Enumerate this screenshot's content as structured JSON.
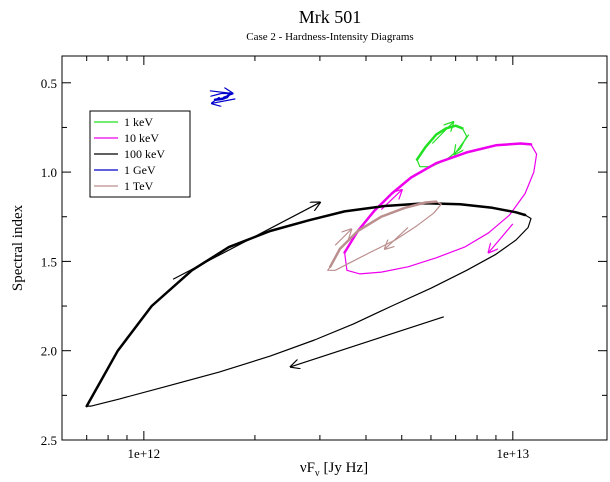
{
  "chart_data": {
    "type": "line",
    "title": "Mrk 501",
    "subtitle": "Case 2 - Hardness-Intensity Diagrams",
    "xlabel": "νF",
    "xlabel_sub": "ν",
    "xlabel_unit": "[Jy Hz]",
    "ylabel": "Spectral index",
    "xscale": "log",
    "xlim": [
      600000000000.0,
      18000000000000.0
    ],
    "ylim": [
      2.5,
      0.35
    ],
    "grid": false,
    "x_ticks": [
      {
        "value": 1000000000000.0,
        "label": "1e+12"
      },
      {
        "value": 10000000000000.0,
        "label": "1e+13"
      }
    ],
    "y_ticks": [
      {
        "value": 0.5,
        "label": "0.5"
      },
      {
        "value": 1.0,
        "label": "1.0"
      },
      {
        "value": 1.5,
        "label": "1.5"
      },
      {
        "value": 2.0,
        "label": "2.0"
      },
      {
        "value": 2.5,
        "label": "2.5"
      }
    ],
    "legend": {
      "position": "top-left"
    },
    "series": [
      {
        "name": "1 keV",
        "color": "#22e022",
        "segments": [
          {
            "width": 2.5,
            "points": [
              [
                5500000000000.0,
                0.93
              ],
              [
                5800000000000.0,
                0.86
              ],
              [
                6200000000000.0,
                0.79
              ],
              [
                6600000000000.0,
                0.755
              ],
              [
                7000000000000.0,
                0.74
              ],
              [
                7300000000000.0,
                0.755
              ]
            ]
          },
          {
            "width": 1.2,
            "points": [
              [
                7300000000000.0,
                0.755
              ],
              [
                7500000000000.0,
                0.8
              ],
              [
                7200000000000.0,
                0.87
              ],
              [
                6600000000000.0,
                0.93
              ],
              [
                6000000000000.0,
                0.97
              ],
              [
                5600000000000.0,
                0.97
              ],
              [
                5500000000000.0,
                0.93
              ]
            ]
          }
        ],
        "arrows": [
          {
            "from": [
              6050000000000.0,
              0.84
            ],
            "to": [
              6900000000000.0,
              0.72
            ]
          },
          {
            "from": [
              7600000000000.0,
              0.79
            ],
            "to": [
              6950000000000.0,
              0.9
            ]
          }
        ]
      },
      {
        "name": "10 keV",
        "color": "#ee00ee",
        "segments": [
          {
            "width": 2.5,
            "points": [
              [
                3500000000000.0,
                1.45
              ],
              [
                3800000000000.0,
                1.33
              ],
              [
                4200000000000.0,
                1.22
              ],
              [
                4700000000000.0,
                1.12
              ],
              [
                5300000000000.0,
                1.03
              ],
              [
                6200000000000.0,
                0.95
              ],
              [
                7500000000000.0,
                0.89
              ],
              [
                9000000000000.0,
                0.85
              ],
              [
                10500000000000.0,
                0.84
              ],
              [
                11200000000000.0,
                0.845
              ]
            ]
          },
          {
            "width": 1.2,
            "points": [
              [
                11200000000000.0,
                0.845
              ],
              [
                11600000000000.0,
                0.9
              ],
              [
                11400000000000.0,
                1.0
              ],
              [
                10800000000000.0,
                1.12
              ],
              [
                9800000000000.0,
                1.24
              ],
              [
                8600000000000.0,
                1.34
              ],
              [
                7400000000000.0,
                1.42
              ],
              [
                6200000000000.0,
                1.48
              ],
              [
                5200000000000.0,
                1.53
              ],
              [
                4400000000000.0,
                1.56
              ],
              [
                3850000000000.0,
                1.57
              ],
              [
                3550000000000.0,
                1.55
              ],
              [
                3500000000000.0,
                1.45
              ]
            ]
          }
        ],
        "arrows": [
          {
            "from": [
              4400000000000.0,
              1.21
            ],
            "to": [
              5000000000000.0,
              1.1
            ]
          },
          {
            "from": [
              10000000000000.0,
              1.29
            ],
            "to": [
              8600000000000.0,
              1.45
            ]
          }
        ]
      },
      {
        "name": "100 keV",
        "color": "#000000",
        "segments": [
          {
            "width": 2.5,
            "points": [
              [
                700000000000.0,
                2.31
              ],
              [
                750000000000.0,
                2.2
              ],
              [
                850000000000.0,
                2.0
              ],
              [
                1050000000000.0,
                1.75
              ],
              [
                1350000000000.0,
                1.55
              ],
              [
                1700000000000.0,
                1.42
              ],
              [
                2200000000000.0,
                1.33
              ],
              [
                2800000000000.0,
                1.27
              ],
              [
                3500000000000.0,
                1.22
              ],
              [
                4500000000000.0,
                1.19
              ],
              [
                5800000000000.0,
                1.175
              ],
              [
                7200000000000.0,
                1.18
              ],
              [
                8800000000000.0,
                1.2
              ],
              [
                10200000000000.0,
                1.225
              ],
              [
                10800000000000.0,
                1.24
              ]
            ]
          },
          {
            "width": 1.2,
            "points": [
              [
                10800000000000.0,
                1.24
              ],
              [
                11200000000000.0,
                1.26
              ],
              [
                11000000000000.0,
                1.31
              ],
              [
                10200000000000.0,
                1.38
              ],
              [
                9000000000000.0,
                1.46
              ],
              [
                7500000000000.0,
                1.55
              ],
              [
                6000000000000.0,
                1.65
              ],
              [
                4700000000000.0,
                1.75
              ],
              [
                3700000000000.0,
                1.85
              ],
              [
                2900000000000.0,
                1.94
              ],
              [
                2200000000000.0,
                2.03
              ],
              [
                1600000000000.0,
                2.12
              ],
              [
                1150000000000.0,
                2.2
              ],
              [
                860000000000.0,
                2.27
              ],
              [
                720000000000.0,
                2.31
              ],
              [
                700000000000.0,
                2.31
              ]
            ]
          }
        ],
        "arrows": [
          {
            "from": [
              1200000000000.0,
              1.6
            ],
            "to": [
              3000000000000.0,
              1.17
            ]
          },
          {
            "from": [
              6500000000000.0,
              1.81
            ],
            "to": [
              2500000000000.0,
              2.09
            ]
          }
        ]
      },
      {
        "name": "1 GeV",
        "color": "#0000cc",
        "segments": [
          {
            "width": 1.2,
            "points": [
              [
                1520000000000.0,
                0.575
              ],
              [
                1620000000000.0,
                0.56
              ],
              [
                1710000000000.0,
                0.56
              ]
            ]
          },
          {
            "width": 2.5,
            "points": [
              [
                1710000000000.0,
                0.56
              ],
              [
                1680000000000.0,
                0.58
              ],
              [
                1630000000000.0,
                0.59
              ],
              [
                1560000000000.0,
                0.595
              ]
            ]
          }
        ],
        "arrows": [
          {
            "from": [
              1510000000000.0,
              0.545
            ],
            "to": [
              1740000000000.0,
              0.56
            ]
          },
          {
            "from": [
              1770000000000.0,
              0.59
            ],
            "to": [
              1530000000000.0,
              0.615
            ]
          }
        ]
      },
      {
        "name": "1 TeV",
        "color": "#bc8f8f",
        "segments": [
          {
            "width": 2.5,
            "points": [
              [
                3200000000000.0,
                1.53
              ],
              [
                3400000000000.0,
                1.43
              ],
              [
                3800000000000.0,
                1.33
              ],
              [
                4400000000000.0,
                1.25
              ],
              [
                5100000000000.0,
                1.2
              ],
              [
                5800000000000.0,
                1.17
              ],
              [
                6200000000000.0,
                1.165
              ]
            ]
          },
          {
            "width": 1.2,
            "points": [
              [
                6200000000000.0,
                1.165
              ],
              [
                6400000000000.0,
                1.18
              ],
              [
                6100000000000.0,
                1.23
              ],
              [
                5500000000000.0,
                1.3
              ],
              [
                4800000000000.0,
                1.38
              ],
              [
                4100000000000.0,
                1.45
              ],
              [
                3600000000000.0,
                1.51
              ],
              [
                3300000000000.0,
                1.55
              ],
              [
                3150000000000.0,
                1.55
              ],
              [
                3200000000000.0,
                1.53
              ]
            ]
          }
        ],
        "arrows": [
          {
            "from": [
              3300000000000.0,
              1.41
            ],
            "to": [
              3650000000000.0,
              1.32
            ]
          },
          {
            "from": [
              5200000000000.0,
              1.31
            ],
            "to": [
              4500000000000.0,
              1.43
            ]
          }
        ]
      }
    ]
  }
}
